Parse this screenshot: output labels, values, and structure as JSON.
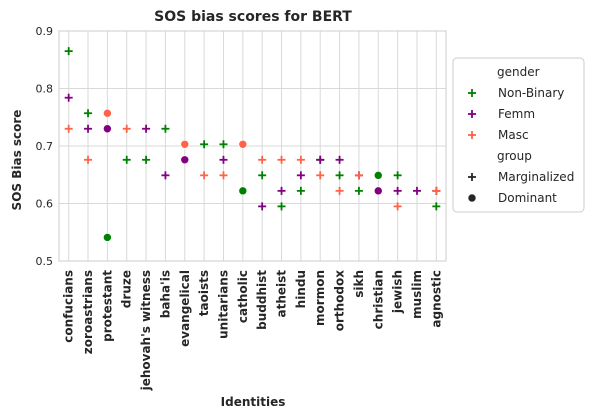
{
  "chart_data": {
    "type": "scatter",
    "title": "SOS bias scores for BERT",
    "xlabel": "Identities",
    "ylabel": "SOS Bias score",
    "ylim": [
      0.5,
      0.9
    ],
    "yticks": [
      0.5,
      0.6,
      0.7,
      0.8,
      0.9
    ],
    "ytick_labels": [
      "0.5",
      "0.6",
      "0.7",
      "0.8",
      "0.9"
    ],
    "grid": true,
    "legend_placement": "right, outside plot",
    "categories": [
      "confucians",
      "zoroastrians",
      "protestant",
      "druze",
      "jehovah's witness",
      "baha'is",
      "evangelical",
      "taoists",
      "unitarians",
      "catholic",
      "buddhist",
      "atheist",
      "hindu",
      "mormon",
      "orthodox",
      "sikh",
      "christian",
      "jewish",
      "muslim",
      "agnostic"
    ],
    "colors": {
      "Non-Binary": "#008000",
      "Femm": "#800080",
      "Masc": "#ff6347"
    },
    "legend": {
      "hue_title": "gender",
      "hue_entries": [
        "Non-Binary",
        "Femm",
        "Masc"
      ],
      "style_title": "group",
      "style_entries": [
        "Marginalized",
        "Dominant"
      ],
      "style_markers": [
        "plus",
        "circle"
      ]
    },
    "series": [
      {
        "name": "Non-Binary",
        "group": "Marginalized",
        "points": [
          {
            "x": "confucians",
            "y": 0.865
          },
          {
            "x": "zoroastrians",
            "y": 0.757
          },
          {
            "x": "druze",
            "y": 0.676
          },
          {
            "x": "jehovah's witness",
            "y": 0.676
          },
          {
            "x": "baha'is",
            "y": 0.73
          },
          {
            "x": "taoists",
            "y": 0.703
          },
          {
            "x": "unitarians",
            "y": 0.703
          },
          {
            "x": "buddhist",
            "y": 0.649
          },
          {
            "x": "atheist",
            "y": 0.595
          },
          {
            "x": "hindu",
            "y": 0.622
          },
          {
            "x": "mormon",
            "y": 0.676
          },
          {
            "x": "orthodox",
            "y": 0.649
          },
          {
            "x": "sikh",
            "y": 0.622
          },
          {
            "x": "jewish",
            "y": 0.649
          },
          {
            "x": "agnostic",
            "y": 0.595
          }
        ]
      },
      {
        "name": "Femm",
        "group": "Marginalized",
        "points": [
          {
            "x": "confucians",
            "y": 0.784
          },
          {
            "x": "zoroastrians",
            "y": 0.73
          },
          {
            "x": "jehovah's witness",
            "y": 0.73
          },
          {
            "x": "baha'is",
            "y": 0.649
          },
          {
            "x": "unitarians",
            "y": 0.676
          },
          {
            "x": "buddhist",
            "y": 0.595
          },
          {
            "x": "atheist",
            "y": 0.622
          },
          {
            "x": "hindu",
            "y": 0.649
          },
          {
            "x": "mormon",
            "y": 0.676
          },
          {
            "x": "orthodox",
            "y": 0.676
          },
          {
            "x": "sikh",
            "y": 0.649
          },
          {
            "x": "jewish",
            "y": 0.622
          },
          {
            "x": "muslim",
            "y": 0.622
          },
          {
            "x": "agnostic",
            "y": 0.622
          }
        ]
      },
      {
        "name": "Masc",
        "group": "Marginalized",
        "points": [
          {
            "x": "confucians",
            "y": 0.73
          },
          {
            "x": "zoroastrians",
            "y": 0.676
          },
          {
            "x": "druze",
            "y": 0.73
          },
          {
            "x": "taoists",
            "y": 0.649
          },
          {
            "x": "unitarians",
            "y": 0.649
          },
          {
            "x": "buddhist",
            "y": 0.676
          },
          {
            "x": "atheist",
            "y": 0.676
          },
          {
            "x": "hindu",
            "y": 0.676
          },
          {
            "x": "mormon",
            "y": 0.649
          },
          {
            "x": "orthodox",
            "y": 0.622
          },
          {
            "x": "sikh",
            "y": 0.649
          },
          {
            "x": "jewish",
            "y": 0.595
          },
          {
            "x": "agnostic",
            "y": 0.622
          }
        ]
      },
      {
        "name": "Non-Binary",
        "group": "Dominant",
        "points": [
          {
            "x": "protestant",
            "y": 0.541
          },
          {
            "x": "catholic",
            "y": 0.622
          },
          {
            "x": "christian",
            "y": 0.649
          }
        ]
      },
      {
        "name": "Femm",
        "group": "Dominant",
        "points": [
          {
            "x": "protestant",
            "y": 0.73
          },
          {
            "x": "evangelical",
            "y": 0.676
          },
          {
            "x": "christian",
            "y": 0.622
          }
        ]
      },
      {
        "name": "Masc",
        "group": "Dominant",
        "points": [
          {
            "x": "protestant",
            "y": 0.757
          },
          {
            "x": "evangelical",
            "y": 0.703
          },
          {
            "x": "catholic",
            "y": 0.703
          }
        ]
      }
    ]
  }
}
